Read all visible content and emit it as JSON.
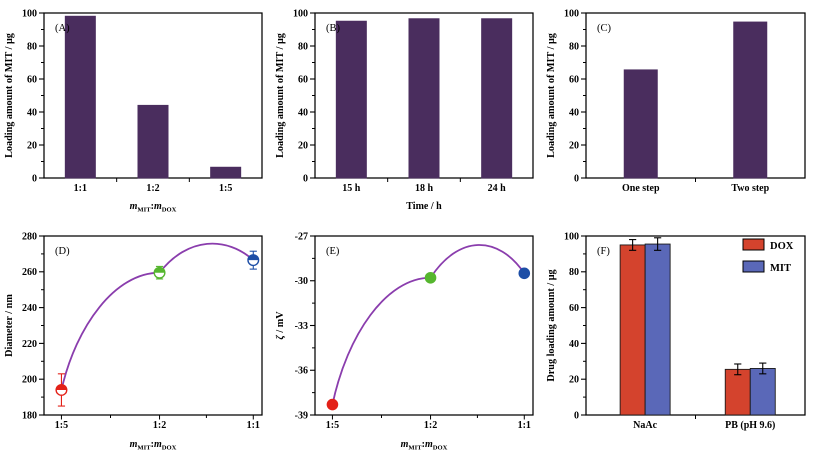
{
  "figure": {
    "background": "#ffffff",
    "axis_color": "#000000",
    "text_color": "#000000"
  },
  "chart_data": [
    {
      "id": "A",
      "tag": "(A)",
      "type": "bar",
      "ylabel_parts": [
        [
          "Loading amount of MIT / μg",
          "n"
        ]
      ],
      "xlabel_parts": [
        [
          "m",
          "i"
        ],
        [
          "MIT",
          "sub"
        ],
        [
          ":",
          "n"
        ],
        [
          "m",
          "i"
        ],
        [
          "DOX",
          "sub"
        ]
      ],
      "xlabel_text": "mMIT:mDOX",
      "categories": [
        "1:1",
        "1:2",
        "1:5"
      ],
      "values": [
        98,
        44,
        6.5
      ],
      "ylim": [
        0,
        100
      ],
      "ytick_step": 20,
      "bar_color": "#4a2d5e"
    },
    {
      "id": "B",
      "tag": "(B)",
      "type": "bar",
      "ylabel_parts": [
        [
          "Loading amount of MIT / μg",
          "n"
        ]
      ],
      "xlabel_parts": [
        [
          "Time / h",
          "n"
        ]
      ],
      "xlabel_text": "Time / h",
      "categories": [
        "15 h",
        "18 h",
        "24 h"
      ],
      "values": [
        95,
        96.5,
        96.5
      ],
      "ylim": [
        0,
        100
      ],
      "ytick_step": 20,
      "bar_color": "#4a2d5e"
    },
    {
      "id": "C",
      "tag": "(C)",
      "type": "bar",
      "ylabel_parts": [
        [
          "Loading amount of MIT / μg",
          "n"
        ]
      ],
      "xlabel_parts": [],
      "xlabel_text": "",
      "categories": [
        "One step",
        "Two step"
      ],
      "values": [
        65.5,
        94.5
      ],
      "ylim": [
        0,
        100
      ],
      "ytick_step": 20,
      "bar_color": "#4a2d5e"
    },
    {
      "id": "D",
      "tag": "(D)",
      "type": "line",
      "ylabel_parts": [
        [
          "Diameter / nm",
          "n"
        ]
      ],
      "xlabel_parts": [
        [
          "m",
          "i"
        ],
        [
          "MIT",
          "sub"
        ],
        [
          ":",
          "n"
        ],
        [
          "m",
          "i"
        ],
        [
          "DOX",
          "sub"
        ]
      ],
      "xlabel_text": "mMIT:mDOX",
      "categories": [
        "1:5",
        "1:2",
        "1:1"
      ],
      "values": [
        194,
        259.5,
        266.5
      ],
      "errors": [
        9,
        3.5,
        5
      ],
      "point_colors": [
        "#e32118",
        "#56b62f",
        "#1d4ea6"
      ],
      "line_color": "#8a3dad",
      "curve_peak": 275,
      "ylim": [
        180,
        280
      ],
      "ytick_step": 20,
      "marker": "half"
    },
    {
      "id": "E",
      "tag": "(E)",
      "type": "line",
      "ylabel_parts": [
        [
          "ζ",
          "i"
        ],
        [
          " / mV",
          "n"
        ]
      ],
      "xlabel_parts": [
        [
          "m",
          "i"
        ],
        [
          "MIT",
          "sub"
        ],
        [
          ":",
          "n"
        ],
        [
          "m",
          "i"
        ],
        [
          "DOX",
          "sub"
        ]
      ],
      "xlabel_text": "mMIT:mDOX",
      "categories": [
        "1:5",
        "1:2",
        "1:1"
      ],
      "values": [
        -38.3,
        -29.8,
        -29.5
      ],
      "errors": null,
      "point_colors": [
        "#e32118",
        "#56b62f",
        "#1d4ea6"
      ],
      "line_color": "#8a3dad",
      "curve_peak": -27.7,
      "ylim": [
        -39,
        -27
      ],
      "ytick_step": 3,
      "marker": "full"
    },
    {
      "id": "F",
      "tag": "(F)",
      "type": "groupbar",
      "ylabel_parts": [
        [
          "Drug loading amount / μg",
          "n"
        ]
      ],
      "xlabel_parts": [],
      "xlabel_text": "",
      "categories": [
        "NaAc",
        "PB (pH 9.6)"
      ],
      "series": [
        {
          "name": "DOX",
          "color": "#d4432d",
          "values": [
            95,
            25.5
          ],
          "errors": [
            3,
            3
          ]
        },
        {
          "name": "MIT",
          "color": "#5a68b8",
          "values": [
            95.5,
            26
          ],
          "errors": [
            3.5,
            3
          ]
        }
      ],
      "ylim": [
        0,
        100
      ],
      "ytick_step": 20,
      "legend_position": "top-right"
    }
  ]
}
